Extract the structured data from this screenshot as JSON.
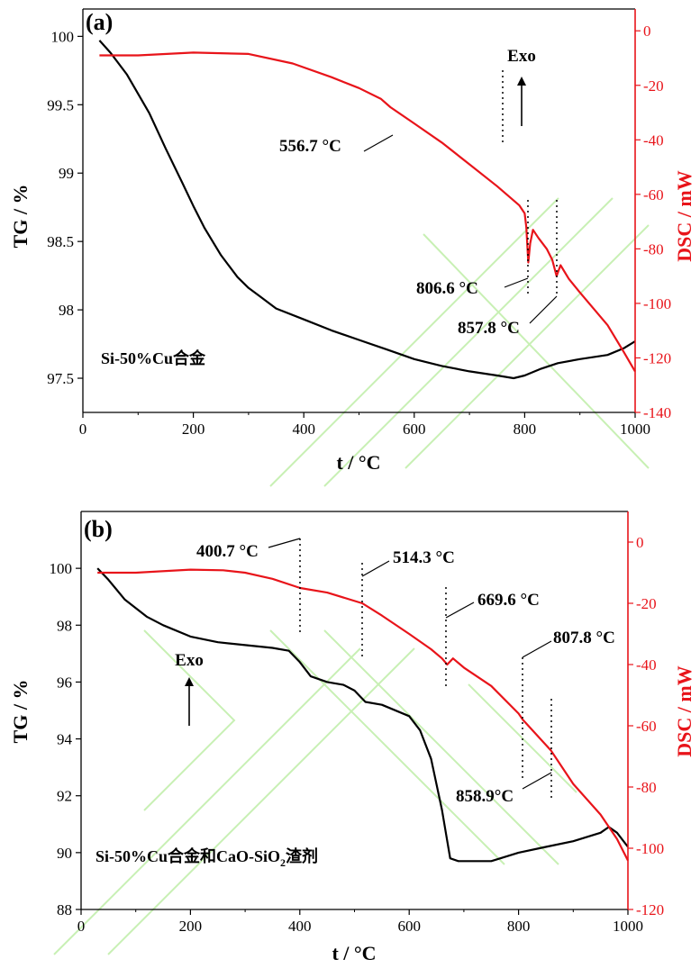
{
  "figure": {
    "accent": {
      "tg": "#000000",
      "dsc": "#e8141a",
      "watermark": "#c8f0b4"
    }
  },
  "chart_data": [
    {
      "type": "line",
      "panel_label": "(a)",
      "xlabel": "t / °C",
      "ylabel_left": "TG / %",
      "ylabel_right": "DSC / mW",
      "xlim": [
        0,
        1000
      ],
      "ylim_left": [
        97.25,
        100.2
      ],
      "ylim_right": [
        -140,
        8
      ],
      "x_ticks": [
        0,
        200,
        400,
        600,
        800,
        1000
      ],
      "y_left_ticks": [
        97.5,
        98,
        98.5,
        99,
        99.5,
        100
      ],
      "y_right_ticks": [
        0,
        -20,
        -40,
        -60,
        -80,
        -100,
        -120,
        -140
      ],
      "series": [
        {
          "name": "TG",
          "axis": "left",
          "color": "#000000",
          "points": [
            [
              30,
              99.97
            ],
            [
              50,
              99.88
            ],
            [
              80,
              99.72
            ],
            [
              120,
              99.44
            ],
            [
              150,
              99.18
            ],
            [
              180,
              98.93
            ],
            [
              200,
              98.76
            ],
            [
              220,
              98.6
            ],
            [
              250,
              98.4
            ],
            [
              280,
              98.24
            ],
            [
              300,
              98.16
            ],
            [
              320,
              98.1
            ],
            [
              350,
              98.01
            ],
            [
              400,
              97.93
            ],
            [
              450,
              97.85
            ],
            [
              500,
              97.78
            ],
            [
              550,
              97.71
            ],
            [
              600,
              97.64
            ],
            [
              650,
              97.59
            ],
            [
              700,
              97.55
            ],
            [
              750,
              97.52
            ],
            [
              780,
              97.5
            ],
            [
              800,
              97.52
            ],
            [
              830,
              97.57
            ],
            [
              860,
              97.61
            ],
            [
              900,
              97.64
            ],
            [
              950,
              97.67
            ],
            [
              980,
              97.72
            ],
            [
              1000,
              97.77
            ]
          ]
        },
        {
          "name": "DSC",
          "axis": "right",
          "color": "#e8141a",
          "points": [
            [
              30,
              -9
            ],
            [
              100,
              -9
            ],
            [
              200,
              -8
            ],
            [
              300,
              -8.5
            ],
            [
              380,
              -12
            ],
            [
              450,
              -17
            ],
            [
              500,
              -21
            ],
            [
              540,
              -25
            ],
            [
              556.7,
              -28
            ],
            [
              600,
              -34
            ],
            [
              650,
              -41
            ],
            [
              700,
              -49
            ],
            [
              750,
              -57
            ],
            [
              790,
              -64
            ],
            [
              800,
              -67
            ],
            [
              803,
              -72
            ],
            [
              806.6,
              -85
            ],
            [
              810,
              -78
            ],
            [
              815,
              -73
            ],
            [
              825,
              -76
            ],
            [
              840,
              -80
            ],
            [
              850,
              -84
            ],
            [
              857.8,
              -90
            ],
            [
              865,
              -86
            ],
            [
              880,
              -91
            ],
            [
              900,
              -96
            ],
            [
              950,
              -108
            ],
            [
              980,
              -118
            ],
            [
              1000,
              -125
            ]
          ]
        }
      ],
      "annotations": [
        {
          "text": "556.7 °C",
          "x": 556.7
        },
        {
          "text": "806.6 °C",
          "x": 806.6
        },
        {
          "text": "857.8 °C",
          "x": 857.8
        },
        {
          "text": "Exo"
        },
        {
          "text": "Si-50%Cu合金"
        }
      ]
    },
    {
      "type": "line",
      "panel_label": "(b)",
      "xlabel": "t / °C",
      "ylabel_left": "TG / %",
      "ylabel_right": "DSC / mW",
      "xlim": [
        0,
        1000
      ],
      "ylim_left": [
        88,
        102
      ],
      "ylim_right": [
        -120,
        10
      ],
      "x_ticks": [
        0,
        200,
        400,
        600,
        800,
        1000
      ],
      "y_left_ticks": [
        88,
        90,
        92,
        94,
        96,
        98,
        100
      ],
      "y_right_ticks": [
        0,
        -20,
        -40,
        -60,
        -80,
        -100,
        -120
      ],
      "series": [
        {
          "name": "TG",
          "axis": "left",
          "color": "#000000",
          "points": [
            [
              30,
              100
            ],
            [
              50,
              99.6
            ],
            [
              80,
              98.9
            ],
            [
              120,
              98.3
            ],
            [
              150,
              98
            ],
            [
              200,
              97.6
            ],
            [
              250,
              97.4
            ],
            [
              300,
              97.3
            ],
            [
              350,
              97.2
            ],
            [
              380,
              97.1
            ],
            [
              400,
              96.7
            ],
            [
              420,
              96.2
            ],
            [
              450,
              96
            ],
            [
              480,
              95.9
            ],
            [
              500,
              95.7
            ],
            [
              520,
              95.3
            ],
            [
              550,
              95.2
            ],
            [
              600,
              94.8
            ],
            [
              620,
              94.3
            ],
            [
              640,
              93.3
            ],
            [
              660,
              91.5
            ],
            [
              675,
              89.8
            ],
            [
              690,
              89.7
            ],
            [
              750,
              89.7
            ],
            [
              800,
              90
            ],
            [
              850,
              90.2
            ],
            [
              900,
              90.4
            ],
            [
              950,
              90.7
            ],
            [
              965,
              90.9
            ],
            [
              980,
              90.7
            ],
            [
              1000,
              90.2
            ]
          ]
        },
        {
          "name": "DSC",
          "axis": "right",
          "color": "#e8141a",
          "points": [
            [
              30,
              -10
            ],
            [
              100,
              -10
            ],
            [
              200,
              -9
            ],
            [
              260,
              -9.2
            ],
            [
              300,
              -10
            ],
            [
              350,
              -12
            ],
            [
              400.7,
              -15
            ],
            [
              450,
              -16.5
            ],
            [
              514.3,
              -20
            ],
            [
              550,
              -24
            ],
            [
              600,
              -30
            ],
            [
              640,
              -35
            ],
            [
              660,
              -38
            ],
            [
              669.6,
              -40
            ],
            [
              680,
              -38
            ],
            [
              700,
              -41
            ],
            [
              750,
              -47
            ],
            [
              800,
              -56
            ],
            [
              807.8,
              -58
            ],
            [
              858.9,
              -68
            ],
            [
              900,
              -79
            ],
            [
              950,
              -89
            ],
            [
              980,
              -97
            ],
            [
              1000,
              -104
            ]
          ]
        }
      ],
      "annotations": [
        {
          "text": "400.7 °C",
          "x": 400.7
        },
        {
          "text": "514.3 °C",
          "x": 514.3
        },
        {
          "text": "669.6 °C",
          "x": 669.6
        },
        {
          "text": "807.8 °C",
          "x": 807.8
        },
        {
          "text": "858.9°C",
          "x": 858.9
        },
        {
          "text": "Exo"
        },
        {
          "text_main": "Si-50%Cu合金和CaO-SiO",
          "subscript": "2",
          "text_tail": "渣剂"
        }
      ]
    }
  ]
}
